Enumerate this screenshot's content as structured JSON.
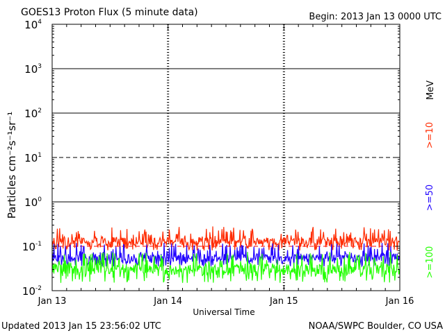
{
  "chart_data": {
    "type": "line",
    "title": "GOES13 Proton Flux (5 minute data)",
    "begin": "Begin: 2013 Jan 13 0000 UTC",
    "xlabel": "Universal Time",
    "ylabel": "Particles cm⁻²s⁻¹sr⁻¹",
    "yscale": "log",
    "ylim": [
      0.01,
      10000
    ],
    "y_ticks": [
      {
        "base": "10",
        "exp": "-2"
      },
      {
        "base": "10",
        "exp": "-1"
      },
      {
        "base": "10",
        "exp": "0"
      },
      {
        "base": "10",
        "exp": "1"
      },
      {
        "base": "10",
        "exp": "2"
      },
      {
        "base": "10",
        "exp": "3"
      },
      {
        "base": "10",
        "exp": "4"
      }
    ],
    "x_ticks": [
      "Jan 13",
      "Jan 14",
      "Jan 15",
      "Jan 16"
    ],
    "xlim_days": [
      0,
      3
    ],
    "data_end_day": 2.997,
    "thresholds": [
      {
        "value": 10,
        "style": "dashed",
        "color": "#000000"
      },
      {
        "value": 0.1,
        "style": "dashed",
        "color": "#ff0000"
      }
    ],
    "unit_label": "MeV",
    "series": [
      {
        "name": ">=10",
        "color": "#ff2a00",
        "typical": 0.13,
        "spread": [
          0.08,
          0.28
        ]
      },
      {
        "name": ">=50",
        "color": "#1f00ff",
        "typical": 0.055,
        "spread": [
          0.035,
          0.12
        ]
      },
      {
        "name": ">=100",
        "color": "#22ff00",
        "typical": 0.03,
        "spread": [
          0.015,
          0.075
        ]
      }
    ]
  },
  "footer": {
    "updated": "Updated 2013 Jan 15 23:56:02 UTC",
    "credit": "NOAA/SWPC Boulder, CO USA"
  }
}
